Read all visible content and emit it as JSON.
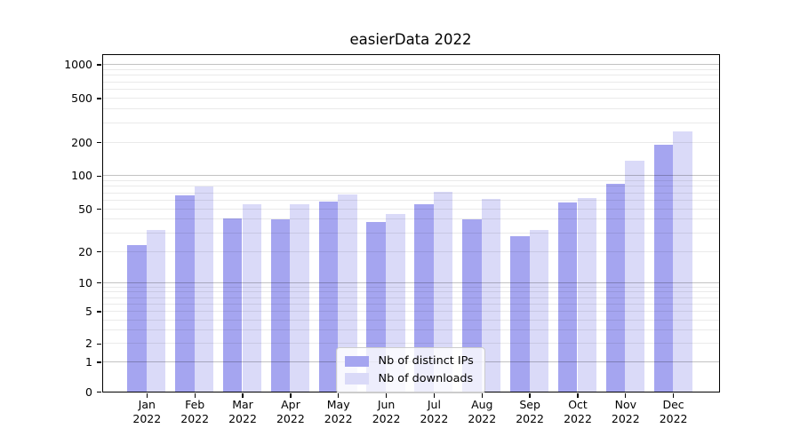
{
  "title": "easierData 2022",
  "y_axis": {
    "tick_labels": [
      "0",
      "1",
      "2",
      "5",
      "10",
      "20",
      "50",
      "100",
      "200",
      "500",
      "1000"
    ]
  },
  "x_axis": {
    "months": [
      "Jan",
      "Feb",
      "Mar",
      "Apr",
      "May",
      "Jun",
      "Jul",
      "Aug",
      "Sep",
      "Oct",
      "Nov",
      "Dec"
    ],
    "year": "2022"
  },
  "legend": {
    "items": [
      {
        "label": "Nb of distinct IPs",
        "color": "#a5a5f0"
      },
      {
        "label": "Nb of downloads",
        "color": "#dadaf8"
      }
    ]
  },
  "chart_data": {
    "type": "bar",
    "title": "easierData 2022",
    "categories": [
      "Jan 2022",
      "Feb 2022",
      "Mar 2022",
      "Apr 2022",
      "May 2022",
      "Jun 2022",
      "Jul 2022",
      "Aug 2022",
      "Sep 2022",
      "Oct 2022",
      "Nov 2022",
      "Dec 2022"
    ],
    "series": [
      {
        "name": "Nb of distinct IPs",
        "color": "#a5a5f0",
        "values": [
          23,
          66,
          41,
          40,
          58,
          38,
          55,
          40,
          28,
          57,
          85,
          192
        ]
      },
      {
        "name": "Nb of downloads",
        "color": "#dadaf8",
        "values": [
          32,
          80,
          55,
          55,
          68,
          45,
          72,
          61,
          32,
          63,
          136,
          250
        ]
      }
    ],
    "xlabel": "",
    "ylabel": "",
    "yscale": "symlog",
    "yticks": [
      0,
      1,
      2,
      5,
      10,
      20,
      50,
      100,
      200,
      500,
      1000
    ],
    "ylim": [
      0,
      1225
    ],
    "grid": true,
    "legend_position": "lower center"
  }
}
